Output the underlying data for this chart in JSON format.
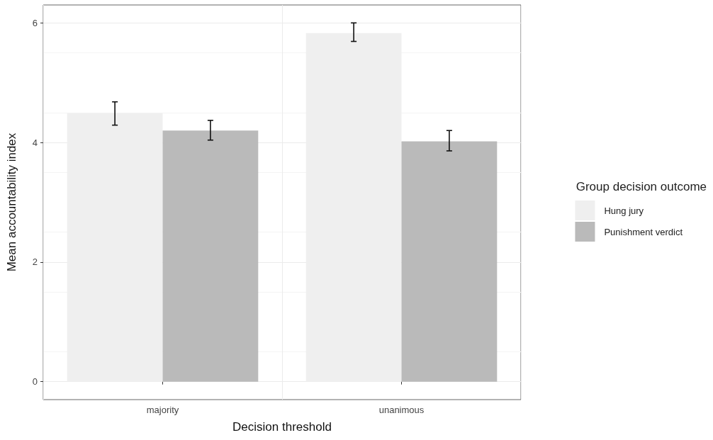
{
  "chart_data": {
    "type": "bar",
    "xlabel": "Decision threshold",
    "ylabel": "Mean accountability index",
    "legend_title": "Group decision outcome",
    "categories": [
      "majority",
      "unanimous"
    ],
    "series": [
      {
        "name": "Hung jury",
        "color": "#efefef",
        "values": [
          4.49,
          5.83
        ],
        "errors": [
          [
            4.29,
            4.68
          ],
          [
            5.69,
            6.0
          ]
        ]
      },
      {
        "name": "Punishment verdict",
        "color": "#bababa",
        "values": [
          4.2,
          4.02
        ],
        "errors": [
          [
            4.04,
            4.37
          ],
          [
            3.86,
            4.2
          ]
        ]
      }
    ],
    "ylim": [
      -0.3,
      6.3
    ],
    "yticks": [
      0,
      2,
      4,
      6
    ],
    "grid": true,
    "legend": "right"
  }
}
